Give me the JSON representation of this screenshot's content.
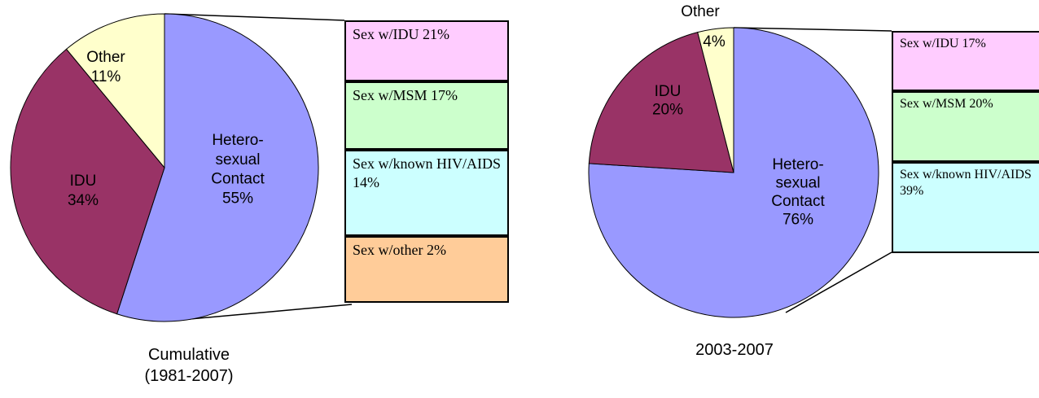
{
  "chart_data": [
    {
      "type": "pie",
      "title": [
        "Cumulative",
        "(1981-2007)"
      ],
      "categories": [
        "Hetero-sexual Contact",
        "IDU",
        "Other"
      ],
      "values": [
        55,
        34,
        11
      ],
      "value_labels": [
        "55%",
        "34%",
        "11%"
      ],
      "colors": [
        "#9999ff",
        "#993366",
        "#ffffcc"
      ],
      "breakdown": {
        "categories": [
          "Sex w/IDU",
          "Sex w/MSM",
          "Sex w/known HIV/AIDS",
          "Sex w/other"
        ],
        "values": [
          21,
          17,
          14,
          2
        ],
        "value_labels": [
          "21%",
          "17%",
          "14%",
          "2%"
        ],
        "colors": [
          "#ffccff",
          "#ccffcc",
          "#ccffff",
          "#ffcc99"
        ]
      }
    },
    {
      "type": "pie",
      "title": [
        "2003-2007"
      ],
      "categories": [
        "Hetero-sexual Contact",
        "IDU",
        "Other"
      ],
      "values": [
        76,
        20,
        4
      ],
      "value_labels": [
        "76%",
        "20%",
        "4%"
      ],
      "colors": [
        "#9999ff",
        "#993366",
        "#ffffcc"
      ],
      "breakdown": {
        "categories": [
          "Sex w/IDU",
          "Sex w/MSM",
          "Sex w/known HIV/AIDS"
        ],
        "values": [
          17,
          20,
          39
        ],
        "value_labels": [
          "17%",
          "20%",
          "39%"
        ],
        "colors": [
          "#ffccff",
          "#ccffcc",
          "#ccffff"
        ]
      }
    }
  ]
}
